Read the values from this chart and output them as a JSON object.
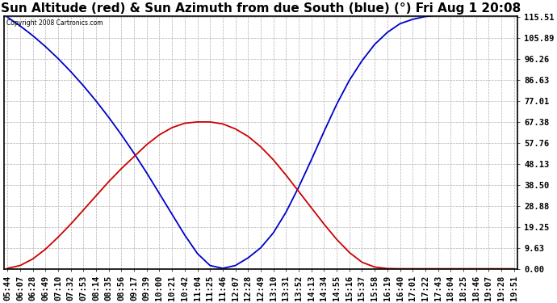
{
  "title": "Sun Altitude (red) & Sun Azimuth from due South (blue) (°) Fri Aug 1 20:08",
  "copyright": "Copyright 2008 Cartronics.com",
  "yticks": [
    0.0,
    9.63,
    19.25,
    28.88,
    38.5,
    48.13,
    57.76,
    67.38,
    77.01,
    86.63,
    96.26,
    105.89,
    115.51
  ],
  "ytick_labels": [
    "0.00",
    "9.63",
    "19.25",
    "28.88",
    "38.50",
    "48.13",
    "57.76",
    "67.38",
    "77.01",
    "86.63",
    "96.26",
    "105.89",
    "115.51"
  ],
  "xtick_labels": [
    "05:44",
    "06:07",
    "06:28",
    "06:49",
    "07:10",
    "07:32",
    "07:53",
    "08:14",
    "08:35",
    "08:56",
    "09:17",
    "09:39",
    "10:00",
    "10:21",
    "10:42",
    "11:04",
    "11:25",
    "11:46",
    "12:07",
    "12:28",
    "12:49",
    "13:10",
    "13:31",
    "13:52",
    "14:13",
    "14:34",
    "14:55",
    "15:16",
    "15:37",
    "15:58",
    "16:19",
    "16:40",
    "17:01",
    "17:22",
    "17:43",
    "18:04",
    "18:25",
    "18:46",
    "19:07",
    "19:28",
    "19:51"
  ],
  "altitude_values": [
    0.2,
    1.5,
    4.5,
    9.0,
    14.5,
    20.5,
    27.0,
    33.5,
    40.0,
    46.0,
    51.5,
    57.0,
    61.5,
    64.8,
    66.8,
    67.4,
    67.4,
    66.5,
    64.2,
    60.8,
    56.0,
    50.0,
    43.0,
    35.5,
    28.0,
    20.5,
    13.5,
    7.5,
    3.0,
    0.8,
    0.1,
    0.0,
    0.0,
    0.0,
    0.0,
    0.0,
    0.0,
    0.0,
    0.0,
    0.0,
    0.0
  ],
  "azimuth_values": [
    115.51,
    111.5,
    107.0,
    102.0,
    96.5,
    90.5,
    84.0,
    77.0,
    69.5,
    61.5,
    53.0,
    44.0,
    34.5,
    25.0,
    15.5,
    7.0,
    1.5,
    0.2,
    1.5,
    5.0,
    9.63,
    16.5,
    26.0,
    37.5,
    50.0,
    63.0,
    75.5,
    86.5,
    95.5,
    103.0,
    108.5,
    112.5,
    114.5,
    115.8,
    116.5,
    117.0,
    117.5,
    118.0,
    118.3,
    118.8,
    119.5
  ],
  "bg_color": "#ffffff",
  "plot_bg_color": "#ffffff",
  "grid_color": "#b0b0b0",
  "red_color": "#cc0000",
  "blue_color": "#0000cc",
  "title_fontsize": 11,
  "tick_fontsize": 7.5,
  "ymax": 115.51,
  "ymin": 0.0
}
